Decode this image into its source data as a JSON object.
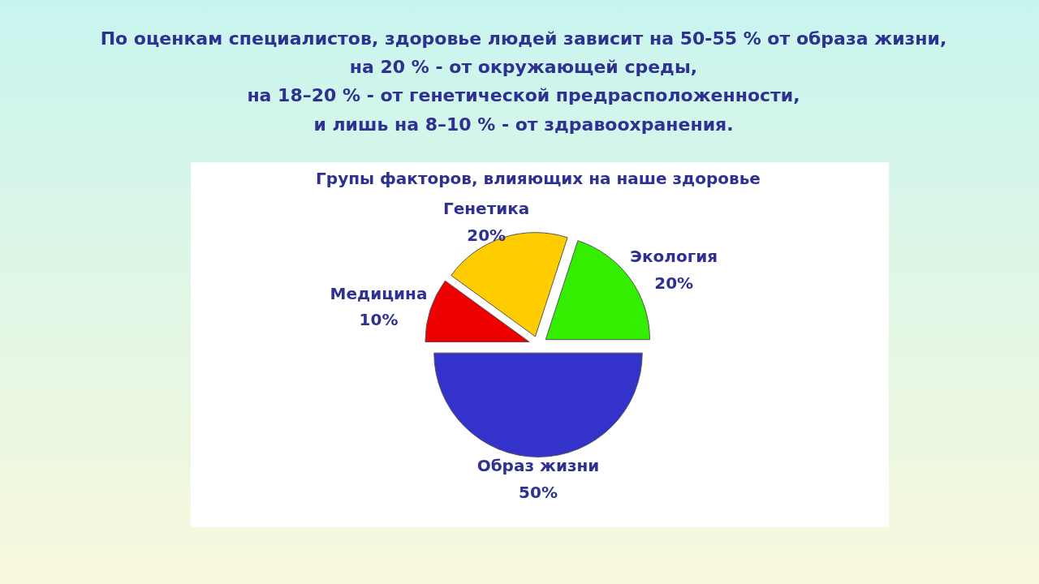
{
  "chart_data": {
    "type": "pie",
    "title": "По оценкам специалистов, здоровье людей зависит на 50-55 % от образа жизни,\nна 20 % - от окружающей среды,\nна 18–20 % - от генетической предрасположенности,\nи лишь на 8–10 % - от здравоохранения.",
    "subtitle": "Групы факторов, влияющих на наше здоровье",
    "categories": [
      "Экология",
      "Генетика",
      "Медицина",
      "Образ жизни"
    ],
    "values": [
      20,
      20,
      10,
      50
    ],
    "colors": [
      "#33ee00",
      "#ffcc00",
      "#ee0000",
      "#3333cc"
    ],
    "value_labels": [
      "20%",
      "20%",
      "10%",
      "50%"
    ]
  }
}
